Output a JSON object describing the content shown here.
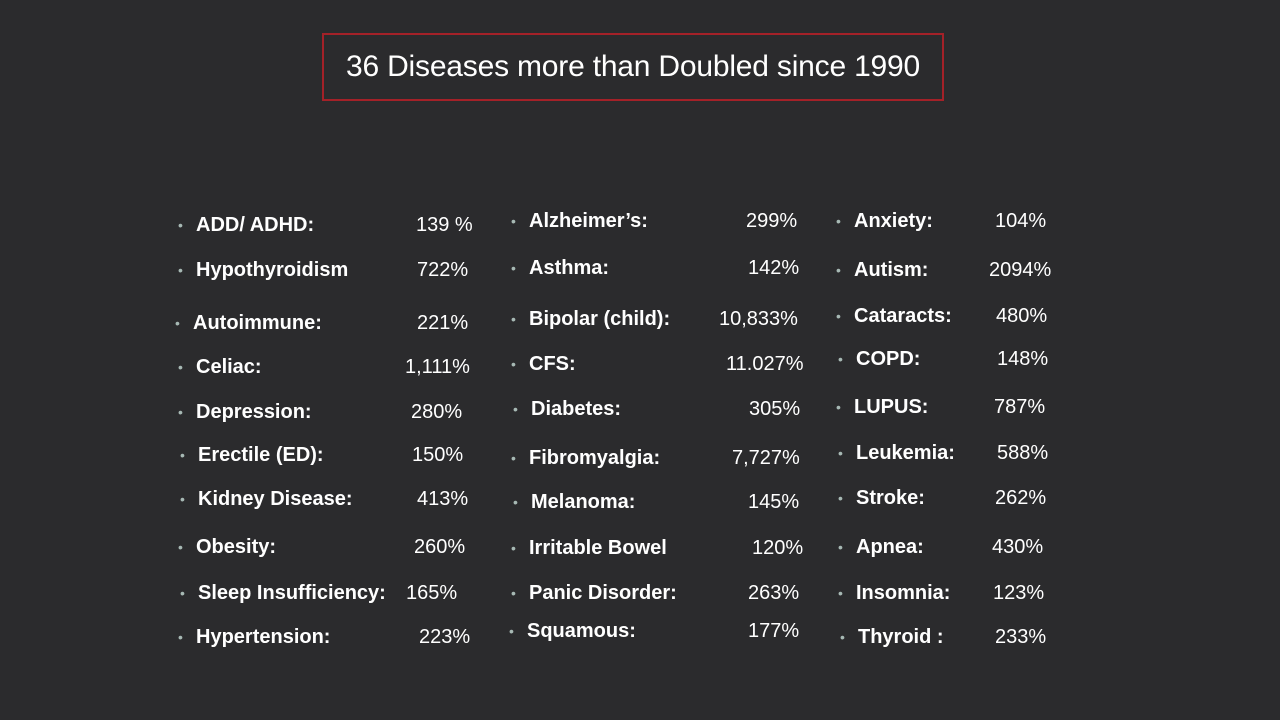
{
  "title": "36 Diseases more than Doubled since 1990",
  "colors": {
    "background": "#2b2b2d",
    "title_border": "#a42128",
    "bullet": "#a7b9b4",
    "text": "#ffffff"
  },
  "bullet_glyph": "•",
  "columns": [
    {
      "items": [
        {
          "name": "ADD/ ADHD:",
          "value": "139 %"
        },
        {
          "name": "Hypothyroidism",
          "value": "722%"
        },
        {
          "name": "Autoimmune:",
          "value": "221%"
        },
        {
          "name": "Celiac:",
          "value": "1,111%"
        },
        {
          "name": "Depression:",
          "value": "280%"
        },
        {
          "name": "Erectile (ED):",
          "value": "150%"
        },
        {
          "name": "Kidney Disease:",
          "value": "413%"
        },
        {
          "name": "Obesity:",
          "value": "260%"
        },
        {
          "name": "Sleep Insufficiency:",
          "value": "165%"
        },
        {
          "name": "Hypertension:",
          "value": "223%"
        }
      ]
    },
    {
      "items": [
        {
          "name": "Alzheimer’s:",
          "value": "299%"
        },
        {
          "name": "Asthma:",
          "value": "142%"
        },
        {
          "name": "Bipolar (child):",
          "value": "10,833%"
        },
        {
          "name": "CFS:",
          "value": "11.027%"
        },
        {
          "name": "Diabetes:",
          "value": "305%"
        },
        {
          "name": "Fibromyalgia:",
          "value": "7,727%"
        },
        {
          "name": "Melanoma:",
          "value": "145%"
        },
        {
          "name": "Irritable Bowel",
          "value": "120%"
        },
        {
          "name": "Panic Disorder:",
          "value": "263%"
        },
        {
          "name": "Squamous:",
          "value": "177%"
        }
      ]
    },
    {
      "items": [
        {
          "name": "Anxiety:",
          "value": "104%"
        },
        {
          "name": "Autism:",
          "value": "2094%"
        },
        {
          "name": "Cataracts:",
          "value": "480%"
        },
        {
          "name": "COPD:",
          "value": "148%"
        },
        {
          "name": "LUPUS:",
          "value": "787%"
        },
        {
          "name": "Leukemia:",
          "value": "588%"
        },
        {
          "name": "Stroke:",
          "value": "262%"
        },
        {
          "name": "Apnea:",
          "value": "430%"
        },
        {
          "name": "Insomnia:",
          "value": "123%"
        },
        {
          "name": "Thyroid :",
          "value": "233%"
        }
      ]
    }
  ]
}
